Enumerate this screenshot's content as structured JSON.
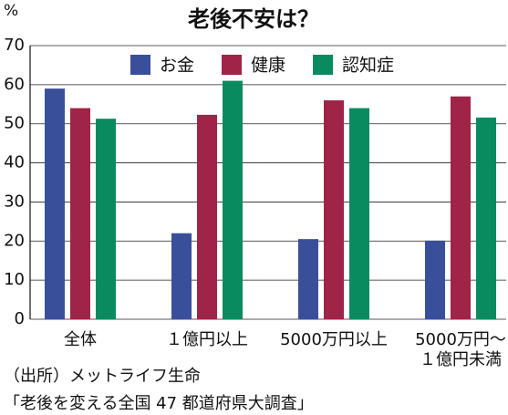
{
  "chart_data": {
    "type": "bar",
    "title": "老後不安は？",
    "y_unit": "%",
    "categories": [
      "全体",
      "１億円以上",
      "5000万円以上",
      "5000万円〜\n１億円未満"
    ],
    "series": [
      {
        "name": "お金",
        "color": "#3a4f9a",
        "values": [
          59,
          22,
          20.5,
          20.1
        ]
      },
      {
        "name": "健康",
        "color": "#a02447",
        "values": [
          54,
          52.3,
          56,
          57
        ]
      },
      {
        "name": "認知症",
        "color": "#0a8a5f",
        "values": [
          51.3,
          61,
          54,
          51.6
        ]
      }
    ],
    "ylim": [
      0,
      70
    ],
    "yticks": [
      0,
      10,
      20,
      30,
      40,
      50,
      60,
      70
    ],
    "grid": true,
    "source": [
      "（出所）メットライフ生命",
      "「老後を変える全国 47 都道府県大調査」"
    ]
  }
}
